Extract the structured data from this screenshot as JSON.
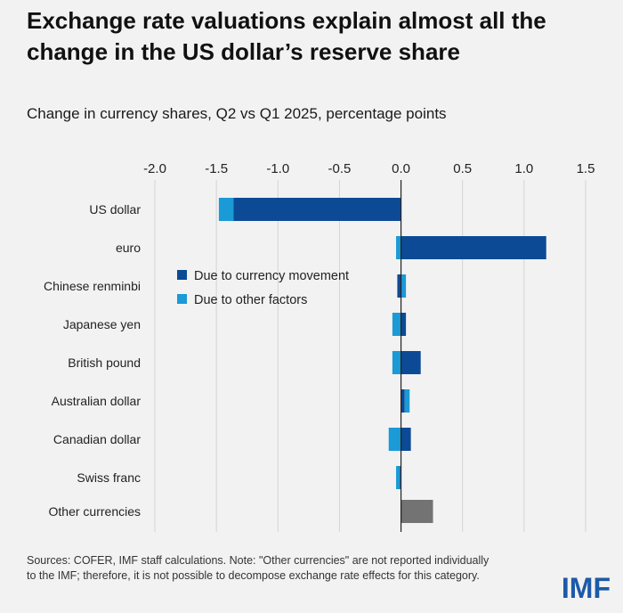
{
  "chart_data": {
    "type": "bar",
    "orientation": "horizontal",
    "stacked": true,
    "title": "Exchange rate valuations explain almost all the change in the US dollar’s reserve share",
    "subtitle": "Change in currency shares, Q2 vs Q1 2025, percentage points",
    "xlim": [
      -2.0,
      1.5
    ],
    "x_ticks": [
      -2.0,
      -1.5,
      -1.0,
      -0.5,
      0.0,
      0.5,
      1.0,
      1.5
    ],
    "x_tick_labels": [
      "-2.0",
      "-1.5",
      "-1.0",
      "-0.5",
      "0.0",
      "0.5",
      "1.0",
      "1.5"
    ],
    "grid": true,
    "legend_position": "center",
    "categories": [
      "US dollar",
      "euro",
      "Chinese renminbi",
      "Japanese yen",
      "British pound",
      "Australian dollar",
      "Canadian dollar",
      "Swiss franc",
      "Other currencies"
    ],
    "series": [
      {
        "name": "Due to currency movement",
        "color": "#0d4a96",
        "values": [
          -1.36,
          1.18,
          -0.03,
          0.04,
          0.16,
          0.03,
          0.08,
          -0.01,
          null
        ]
      },
      {
        "name": "Due to other factors",
        "color": "#1a9ad6",
        "values": [
          -0.12,
          -0.04,
          0.04,
          -0.07,
          -0.07,
          0.04,
          -0.1,
          -0.03,
          null
        ]
      },
      {
        "name": "",
        "color": "#737373",
        "values": [
          null,
          null,
          null,
          null,
          null,
          null,
          null,
          null,
          0.26
        ]
      }
    ]
  },
  "note": "Sources: COFER, IMF staff calculations. Note: \"Other currencies\" are not reported individually to the IMF; therefore, it is not possible to decompose exchange rate effects for this category.",
  "logo_text": "IMF"
}
